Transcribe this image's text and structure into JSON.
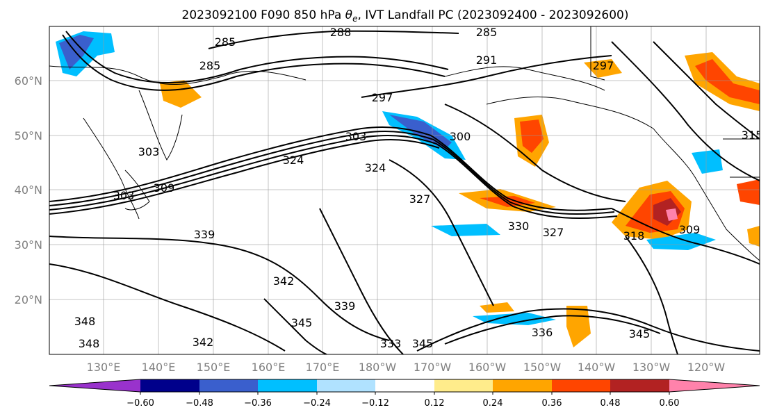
{
  "title_prefix": "2023092100 F090 850 hPa ",
  "title_symbol": "θ",
  "title_subscript": "e",
  "title_suffix": ", IVT Landfall PC (2023092400 - 2023092600)",
  "lon_labels": [
    "130°E",
    "140°E",
    "150°E",
    "160°E",
    "170°E",
    "180°W",
    "170°W",
    "160°W",
    "150°W",
    "140°W",
    "130°W",
    "120°W"
  ],
  "lat_labels": [
    "60°N",
    "50°N",
    "40°N",
    "30°N",
    "20°N"
  ],
  "colorbar": {
    "colors": [
      "#9932cc",
      "#00008b",
      "#3a5fcd",
      "#00bfff",
      "#b0e2ff",
      "#ffffff",
      "#ffec8b",
      "#ffa500",
      "#ff4500",
      "#b22222",
      "#ff82ab"
    ],
    "tick_labels": [
      "−0.60",
      "−0.48",
      "−0.36",
      "−0.24",
      "−0.12",
      "0.12",
      "0.24",
      "0.36",
      "0.48",
      "0.60"
    ]
  },
  "contour_labels": [
    "285",
    "288",
    "285",
    "285",
    "291",
    "297",
    "297",
    "303",
    "300",
    "315",
    "303",
    "303",
    "309",
    "324",
    "324",
    "327",
    "330",
    "327",
    "309",
    "318",
    "339",
    "342",
    "339",
    "345",
    "348",
    "348",
    "345",
    "342",
    "336",
    "345",
    "333"
  ]
}
